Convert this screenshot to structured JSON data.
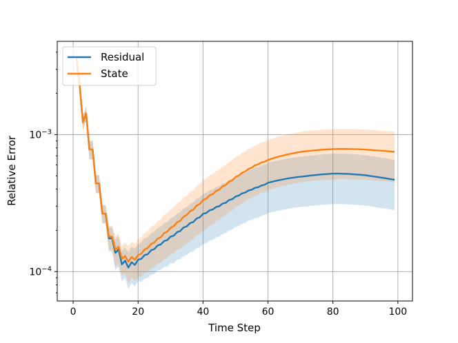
{
  "chart_data": {
    "type": "line",
    "xlabel": "Time Step",
    "ylabel": "Relative Error",
    "xlim": [
      -4.9,
      104.5
    ],
    "ylim": [
      6.1e-05,
      0.0048
    ],
    "yscale": "log",
    "grid": true,
    "legend_placement": "top-left",
    "xticks": [
      0,
      20,
      40,
      60,
      80,
      100
    ],
    "xtick_labels": [
      "0",
      "20",
      "40",
      "60",
      "80",
      "100"
    ],
    "yticks": [
      {
        "value": 0.001,
        "base": "10",
        "exp": "−3"
      },
      {
        "value": 0.0001,
        "base": "10",
        "exp": "−4"
      }
    ],
    "x": [
      1,
      2,
      3,
      4,
      5,
      6,
      7,
      8,
      9,
      10,
      11,
      12,
      13,
      14,
      15,
      16,
      17,
      18,
      19,
      20,
      21,
      22,
      23,
      24,
      25,
      26,
      27,
      28,
      29,
      30,
      31,
      32,
      33,
      34,
      35,
      36,
      37,
      38,
      39,
      40,
      41,
      42,
      43,
      44,
      45,
      46,
      47,
      48,
      49,
      50,
      51,
      52,
      53,
      54,
      55,
      56,
      57,
      58,
      59,
      60,
      61,
      62,
      63,
      64,
      65,
      66,
      67,
      68,
      69,
      70,
      71,
      72,
      73,
      74,
      75,
      76,
      77,
      78,
      79,
      80,
      81,
      82,
      83,
      84,
      85,
      86,
      87,
      88,
      89,
      90,
      91,
      92,
      93,
      94,
      95,
      96,
      97,
      98,
      99
    ],
    "series": [
      {
        "name": "Residual",
        "color": "#1f77b4",
        "mean": [
          0.0037,
          0.0023,
          0.00123,
          0.00143,
          0.00078,
          0.00078,
          0.00044,
          0.00044,
          0.000265,
          0.000265,
          0.000175,
          0.000175,
          0.000137,
          0.000145,
          0.000113,
          0.00012,
          0.000107,
          0.000117,
          0.000112,
          0.000122,
          0.000124,
          0.000132,
          0.000134,
          0.000143,
          0.000146,
          0.000155,
          0.000158,
          0.000167,
          0.00017,
          0.00018,
          0.000183,
          0.000194,
          0.000198,
          0.00021,
          0.000214,
          0.000226,
          0.00023,
          0.000244,
          0.000249,
          0.000264,
          0.000268,
          0.00028,
          0.000284,
          0.000296,
          0.0003,
          0.000314,
          0.000318,
          0.000333,
          0.000338,
          0.000353,
          0.000359,
          0.000372,
          0.000378,
          0.000391,
          0.000396,
          0.000409,
          0.000413,
          0.000425,
          0.000431,
          0.000445,
          0.000451,
          0.000457,
          0.000463,
          0.000468,
          0.000473,
          0.000478,
          0.000482,
          0.000486,
          0.00049,
          0.000493,
          0.000496,
          0.000499,
          0.000502,
          0.000505,
          0.000508,
          0.000511,
          0.000513,
          0.000515,
          0.000517,
          0.000519,
          0.000519,
          0.000519,
          0.000518,
          0.000517,
          0.000516,
          0.000514,
          0.000512,
          0.00051,
          0.000508,
          0.000505,
          0.000501,
          0.000497,
          0.000493,
          0.000489,
          0.000485,
          0.000481,
          0.000477,
          0.000472,
          0.000468
        ],
        "std": [
          0.00044,
          0.00028,
          0.00015,
          0.00017,
          0.00012,
          0.00012,
          6.6e-05,
          6.6e-05,
          4e-05,
          4e-05,
          3.5e-05,
          3.5e-05,
          3.4e-05,
          3.6e-05,
          2.8e-05,
          3e-05,
          3.2e-05,
          3.5e-05,
          3.4e-05,
          3.7e-05,
          4e-05,
          4.3e-05,
          4.4e-05,
          4.8e-05,
          5e-05,
          5.3e-05,
          5.5e-05,
          5.9e-05,
          6.1e-05,
          6.5e-05,
          6.8e-05,
          7.2e-05,
          7.5e-05,
          8e-05,
          8.2e-05,
          8.7e-05,
          9e-05,
          9.6e-05,
          9.9e-05,
          0.000106,
          0.000107,
          0.000112,
          0.000114,
          0.000118,
          0.00012,
          0.000126,
          0.000127,
          0.000133,
          0.000135,
          0.000141,
          0.000144,
          0.000149,
          0.000151,
          0.000156,
          0.000158,
          0.000164,
          0.000165,
          0.00017,
          0.000172,
          0.000178,
          0.00018,
          0.000183,
          0.000185,
          0.000187,
          0.000189,
          0.000191,
          0.000193,
          0.000194,
          0.000196,
          0.000197,
          0.000198,
          0.0002,
          0.000201,
          0.000202,
          0.000203,
          0.000204,
          0.000205,
          0.000206,
          0.000207,
          0.000208,
          0.000208,
          0.000208,
          0.000207,
          0.000207,
          0.000206,
          0.000206,
          0.000205,
          0.000204,
          0.000203,
          0.000202,
          0.0002,
          0.000199,
          0.000197,
          0.000196,
          0.000194,
          0.000192,
          0.000191,
          0.000189,
          0.000187
        ]
      },
      {
        "name": "State",
        "color": "#ff7f0e",
        "mean": [
          0.0037,
          0.0023,
          0.00123,
          0.00143,
          0.00078,
          0.00078,
          0.00044,
          0.00044,
          0.000265,
          0.000265,
          0.00018,
          0.00018,
          0.000145,
          0.000152,
          0.000124,
          0.00013,
          0.000118,
          0.000128,
          0.000122,
          0.000132,
          0.000135,
          0.000145,
          0.000149,
          0.000159,
          0.000163,
          0.000174,
          0.000178,
          0.000191,
          0.000196,
          0.000209,
          0.000215,
          0.000229,
          0.000235,
          0.000252,
          0.000259,
          0.000276,
          0.000283,
          0.000303,
          0.000312,
          0.000333,
          0.000341,
          0.00036,
          0.000368,
          0.000388,
          0.000397,
          0.000419,
          0.000429,
          0.000453,
          0.000464,
          0.00049,
          0.000503,
          0.000526,
          0.000539,
          0.000562,
          0.000574,
          0.000597,
          0.000607,
          0.000627,
          0.000635,
          0.000654,
          0.000666,
          0.000677,
          0.000688,
          0.000698,
          0.000707,
          0.000716,
          0.000725,
          0.000733,
          0.000741,
          0.000748,
          0.000753,
          0.000758,
          0.000762,
          0.000766,
          0.00077,
          0.000774,
          0.000777,
          0.00078,
          0.000782,
          0.000784,
          0.000785,
          0.000786,
          0.000786,
          0.000786,
          0.000785,
          0.000784,
          0.000783,
          0.000782,
          0.00078,
          0.000778,
          0.000775,
          0.000772,
          0.000769,
          0.000766,
          0.000763,
          0.00076,
          0.000757,
          0.000753,
          0.000749
        ],
        "std": [
          0.00044,
          0.00028,
          0.00015,
          0.00017,
          0.00012,
          0.00012,
          6.6e-05,
          6.6e-05,
          4e-05,
          4e-05,
          3.6e-05,
          3.6e-05,
          3.6e-05,
          3.8e-05,
          3.1e-05,
          3.3e-05,
          3.5e-05,
          3.8e-05,
          3.7e-05,
          4e-05,
          4.3e-05,
          4.7e-05,
          4.9e-05,
          5.3e-05,
          5.5e-05,
          6e-05,
          6.2e-05,
          6.8e-05,
          7.1e-05,
          7.5e-05,
          8e-05,
          8.5e-05,
          8.9e-05,
          9.6e-05,
          9.9e-05,
          0.000107,
          0.00011,
          0.000119,
          0.000124,
          0.000133,
          0.000136,
          0.000144,
          0.000147,
          0.000155,
          0.000159,
          0.000168,
          0.000172,
          0.000181,
          0.000186,
          0.000196,
          0.000201,
          0.00021,
          0.000216,
          0.000225,
          0.00023,
          0.000239,
          0.000243,
          0.000251,
          0.000254,
          0.000262,
          0.000266,
          0.000271,
          0.000275,
          0.000279,
          0.000283,
          0.000286,
          0.00029,
          0.000293,
          0.000296,
          0.000299,
          0.000301,
          0.000303,
          0.000305,
          0.000306,
          0.000308,
          0.00031,
          0.000311,
          0.000312,
          0.000313,
          0.000314,
          0.000314,
          0.000314,
          0.000314,
          0.000314,
          0.000314,
          0.000314,
          0.000313,
          0.000313,
          0.000312,
          0.000311,
          0.00031,
          0.000309,
          0.000308,
          0.000306,
          0.000305,
          0.000304,
          0.000303,
          0.000301,
          0.0003
        ]
      }
    ]
  }
}
